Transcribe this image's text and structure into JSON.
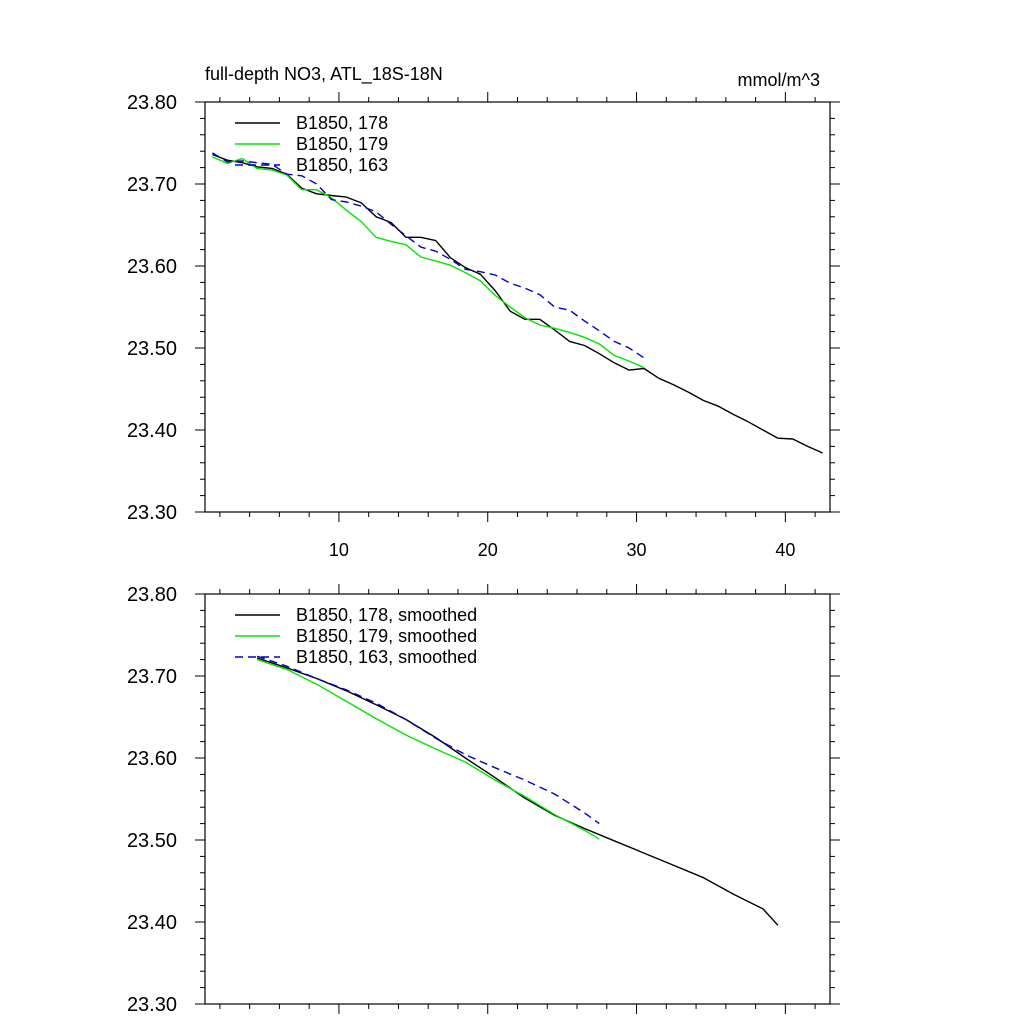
{
  "title": "full-depth NO3, ATL_18S-18N",
  "units": "mmol/m^3",
  "colors": {
    "178": "#000000",
    "179": "#00e600",
    "163": "#0000cc"
  },
  "chart_data": [
    {
      "type": "line",
      "xlim": [
        1,
        43
      ],
      "ylim": [
        23.3,
        23.8
      ],
      "xticks": [
        10,
        20,
        30,
        40
      ],
      "yticks": [
        "23.30",
        "23.40",
        "23.50",
        "23.60",
        "23.70",
        "23.80"
      ],
      "show_xtick_labels": true,
      "legend_position": "top-left",
      "series": [
        {
          "name": "B1850, 178",
          "color": "#000000",
          "dash": "solid",
          "x": [
            1.5,
            2.5,
            3.5,
            4.5,
            5.5,
            6.5,
            7.5,
            8.5,
            9.5,
            10.5,
            11.5,
            12.5,
            13.5,
            14.5,
            15.5,
            16.5,
            17.5,
            18.5,
            19.5,
            20.5,
            21.5,
            22.5,
            23.5,
            24.5,
            25.5,
            26.5,
            27.5,
            28.5,
            29.5,
            30.5,
            31.5,
            32.5,
            33.5,
            34.5,
            35.5,
            36.5,
            37.5,
            38.5,
            39.5,
            40.5,
            41.5,
            42.5
          ],
          "y": [
            23.736,
            23.729,
            23.726,
            23.721,
            23.719,
            23.712,
            23.695,
            23.688,
            23.686,
            23.684,
            23.677,
            23.66,
            23.653,
            23.635,
            23.635,
            23.631,
            23.61,
            23.598,
            23.59,
            23.57,
            23.545,
            23.535,
            23.535,
            23.522,
            23.508,
            23.503,
            23.493,
            23.482,
            23.473,
            23.475,
            23.463,
            23.455,
            23.446,
            23.436,
            23.429,
            23.419,
            23.41,
            23.4,
            23.39,
            23.389,
            23.38,
            23.372
          ]
        },
        {
          "name": "B1850, 179",
          "color": "#00e600",
          "dash": "solid",
          "x": [
            1.5,
            2.5,
            3.5,
            4.5,
            5.5,
            6.5,
            7.5,
            8.5,
            9.5,
            10.5,
            11.5,
            12.5,
            13.5,
            14.5,
            15.5,
            16.5,
            17.5,
            18.5,
            19.5,
            20.5,
            21.5,
            22.5,
            23.5,
            24.5,
            25.5,
            26.5,
            27.5,
            28.5,
            29.5,
            30.5
          ],
          "y": [
            23.733,
            23.725,
            23.731,
            23.719,
            23.717,
            23.711,
            23.693,
            23.693,
            23.683,
            23.668,
            23.654,
            23.635,
            23.63,
            23.626,
            23.611,
            23.606,
            23.601,
            23.592,
            23.582,
            23.564,
            23.55,
            23.537,
            23.528,
            23.524,
            23.519,
            23.513,
            23.505,
            23.491,
            23.484,
            23.476
          ]
        },
        {
          "name": "B1850, 163",
          "color": "#0000cc",
          "dash": "dashed",
          "x": [
            1.5,
            2.5,
            3.5,
            4.5,
            5.5,
            6.5,
            7.5,
            8.5,
            9.5,
            10.5,
            11.5,
            12.5,
            13.5,
            14.5,
            15.5,
            16.5,
            17.5,
            18.5,
            19.5,
            20.5,
            21.5,
            22.5,
            23.5,
            24.5,
            25.5,
            26.5,
            27.5,
            28.5,
            29.5,
            30.5
          ],
          "y": [
            23.738,
            23.727,
            23.728,
            23.726,
            23.724,
            23.712,
            23.71,
            23.7,
            23.681,
            23.678,
            23.673,
            23.666,
            23.651,
            23.637,
            23.623,
            23.618,
            23.608,
            23.596,
            23.593,
            23.589,
            23.579,
            23.573,
            23.565,
            23.55,
            23.546,
            23.533,
            23.521,
            23.508,
            23.5,
            23.488
          ]
        }
      ]
    },
    {
      "type": "line",
      "xlim": [
        1,
        43
      ],
      "ylim": [
        23.3,
        23.8
      ],
      "xticks": [
        10,
        20,
        30,
        40
      ],
      "yticks": [
        "23.30",
        "23.40",
        "23.50",
        "23.60",
        "23.70",
        "23.80"
      ],
      "show_xtick_labels": false,
      "legend_position": "top-left",
      "series": [
        {
          "name": "B1850, 178, smoothed",
          "color": "#000000",
          "dash": "solid",
          "x": [
            4.5,
            6.5,
            8.5,
            10.5,
            12.5,
            14.5,
            16.5,
            18.5,
            20.5,
            22.5,
            24.5,
            26.5,
            28.5,
            30.5,
            32.5,
            34.5,
            36.5,
            38.5,
            39.5
          ],
          "y": [
            23.722,
            23.71,
            23.697,
            23.682,
            23.665,
            23.647,
            23.625,
            23.6,
            23.576,
            23.551,
            23.53,
            23.514,
            23.499,
            23.484,
            23.469,
            23.454,
            23.434,
            23.416,
            23.396
          ]
        },
        {
          "name": "B1850, 179, smoothed",
          "color": "#00e600",
          "dash": "solid",
          "x": [
            4.5,
            6.5,
            8.5,
            10.5,
            12.5,
            14.5,
            16.5,
            18.5,
            20.5,
            22.5,
            24.5,
            26.5,
            27.5
          ],
          "y": [
            23.72,
            23.708,
            23.69,
            23.669,
            23.648,
            23.628,
            23.611,
            23.595,
            23.573,
            23.553,
            23.531,
            23.512,
            23.501
          ]
        },
        {
          "name": "B1850, 163, smoothed",
          "color": "#0000cc",
          "dash": "dashed",
          "x": [
            4.5,
            6.5,
            8.5,
            10.5,
            12.5,
            14.5,
            16.5,
            18.5,
            20.5,
            22.5,
            24.5,
            26.5,
            27.5
          ],
          "y": [
            23.724,
            23.712,
            23.697,
            23.683,
            23.667,
            23.647,
            23.624,
            23.604,
            23.588,
            23.573,
            23.556,
            23.533,
            23.52
          ]
        }
      ]
    }
  ]
}
